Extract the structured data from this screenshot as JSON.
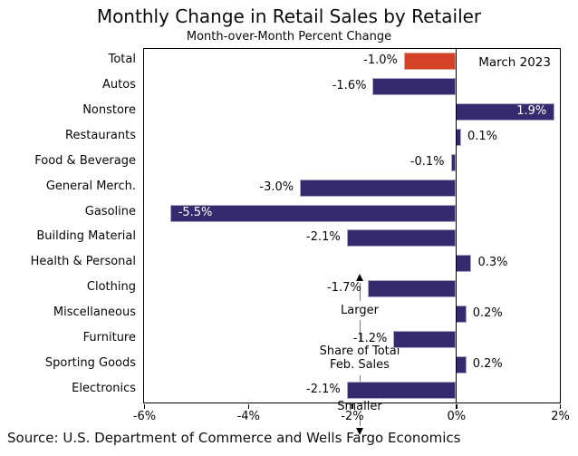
{
  "title": "Monthly Change in Retail Sales by Retailer",
  "subtitle": "Month-over-Month Percent Change",
  "date_label": "March 2023",
  "source": "Source: U.S. Department of Commerce and Wells Fargo Economics",
  "share_annotation": {
    "top_label": "Larger",
    "line1": "Share of Total",
    "line2": "Feb. Sales",
    "bottom_label": "Smaller"
  },
  "colors": {
    "bar": "#352a6e",
    "highlight": "#d5422a",
    "axis": "#000000",
    "inside_label": "#ffffff"
  },
  "chart_data": {
    "type": "bar",
    "orientation": "horizontal",
    "title": "Monthly Change in Retail Sales by Retailer",
    "subtitle": "Month-over-Month Percent Change",
    "categories": [
      "Total",
      "Autos",
      "Nonstore",
      "Restaurants",
      "Food & Beverage",
      "General Merch.",
      "Gasoline",
      "Building Material",
      "Health & Personal",
      "Clothing",
      "Miscellaneous",
      "Furniture",
      "Sporting Goods",
      "Electronics"
    ],
    "values": [
      -1.0,
      -1.6,
      1.9,
      0.1,
      -0.1,
      -3.0,
      -5.5,
      -2.1,
      0.3,
      -1.7,
      0.2,
      -1.2,
      0.2,
      -2.1
    ],
    "labels": [
      "-1.0%",
      "-1.6%",
      "1.9%",
      "0.1%",
      "-0.1%",
      "-3.0%",
      "-5.5%",
      "-2.1%",
      "0.3%",
      "-1.7%",
      "0.2%",
      "-1.2%",
      "0.2%",
      "-2.1%"
    ],
    "highlight_category": "Total",
    "inside_label_categories": [
      "Nonstore",
      "Gasoline"
    ],
    "xlim": [
      -6,
      2
    ],
    "xtick_values": [
      -6,
      -4,
      -2,
      0,
      2
    ],
    "xtick_labels": [
      "-6%",
      "-4%",
      "-2%",
      "0%",
      "2%"
    ],
    "grid": false,
    "legend": "none",
    "annotation": "March 2023"
  }
}
